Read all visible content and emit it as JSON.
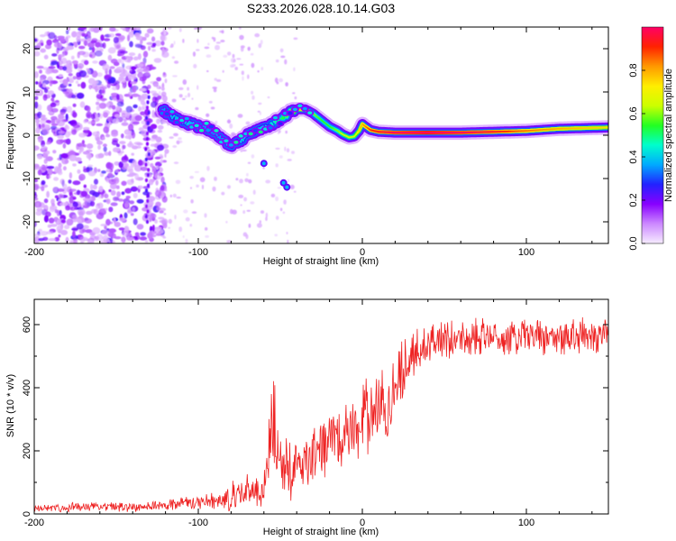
{
  "title": "S233.2026.028.10.14.G03",
  "chart_data": [
    {
      "type": "heatmap",
      "name": "spectrogram",
      "xlabel": "Height of straight line (km)",
      "ylabel": "Frequency (Hz)",
      "xlim": [
        -200,
        150
      ],
      "ylim": [
        -25,
        25
      ],
      "x_ticks": [
        -200,
        -100,
        0,
        100
      ],
      "x_tick_labels": [
        "-200",
        "-100",
        "0",
        "100"
      ],
      "y_ticks": [
        -20,
        -10,
        0,
        10,
        20
      ],
      "y_tick_labels": [
        "-20",
        "-10",
        "0",
        "10",
        "20"
      ],
      "colorbar": {
        "label": "Normalized spectral amplitude",
        "range": [
          0,
          1
        ],
        "ticks": [
          0.0,
          0.2,
          0.4,
          0.6,
          0.8
        ],
        "tick_labels": [
          "0.0",
          "0.2",
          "0.4",
          "0.6",
          "0.8"
        ],
        "colormap": [
          "#f6ecff",
          "#cc88ff",
          "#8800ff",
          "#2222ff",
          "#00aaff",
          "#00ffcc",
          "#22ff22",
          "#ccff00",
          "#ffee00",
          "#ff9900",
          "#ff2200",
          "#ff0066"
        ]
      },
      "ridge": {
        "x": [
          -122,
          -115,
          -108,
          -100,
          -95,
          -90,
          -85,
          -80,
          -75,
          -70,
          -65,
          -60,
          -55,
          -50,
          -45,
          -40,
          -35,
          -30,
          -25,
          -20,
          -15,
          -12,
          -8,
          -5,
          -2,
          0,
          2,
          5,
          10,
          20,
          40,
          60,
          80,
          100,
          120,
          150
        ],
        "y": [
          6,
          4,
          3,
          2,
          1.5,
          0.5,
          -1,
          -2.5,
          -1.5,
          0,
          0.8,
          1.8,
          2.6,
          3.8,
          5,
          6,
          6,
          5,
          3.5,
          2,
          1,
          0.2,
          -0.5,
          -0.3,
          1,
          2.6,
          2,
          1.2,
          0.8,
          0.6,
          0.6,
          0.6,
          0.8,
          1.0,
          1.5,
          1.8
        ],
        "amplitude": [
          0.3,
          0.35,
          0.35,
          0.3,
          0.3,
          0.3,
          0.3,
          0.35,
          0.35,
          0.35,
          0.35,
          0.35,
          0.4,
          0.45,
          0.55,
          0.7,
          0.75,
          0.55,
          0.5,
          0.5,
          0.55,
          0.6,
          0.6,
          0.6,
          0.7,
          0.75,
          0.8,
          0.85,
          0.9,
          0.95,
          1.0,
          0.95,
          0.9,
          0.8,
          0.75,
          0.7
        ]
      },
      "noise_region": {
        "x": [
          -200,
          -120
        ],
        "y": [
          -25,
          25
        ],
        "amplitude": [
          0.05,
          0.25
        ]
      }
    },
    {
      "type": "line",
      "name": "snr",
      "xlabel": "Height of straight line (km)",
      "ylabel": "SNR (10 * v/v)",
      "xlim": [
        -200,
        150
      ],
      "ylim": [
        0,
        680
      ],
      "x_ticks": [
        -200,
        -100,
        0,
        100
      ],
      "x_tick_labels": [
        "-200",
        "-100",
        "0",
        "100"
      ],
      "y_ticks": [
        0,
        200,
        400,
        600
      ],
      "y_tick_labels": [
        "0",
        "200",
        "400",
        "600"
      ],
      "color": "#ee2222",
      "envelope": {
        "x": [
          -200,
          -150,
          -130,
          -120,
          -100,
          -90,
          -80,
          -70,
          -60,
          -55,
          -50,
          -45,
          -40,
          -30,
          -20,
          -10,
          0,
          10,
          15,
          20,
          25,
          30,
          40,
          60,
          80,
          100,
          120,
          150
        ],
        "mean": [
          20,
          22,
          25,
          30,
          35,
          40,
          55,
          70,
          85,
          230,
          160,
          130,
          150,
          180,
          220,
          260,
          290,
          320,
          350,
          400,
          450,
          500,
          540,
          560,
          560,
          560,
          560,
          570
        ],
        "spread": [
          12,
          15,
          15,
          20,
          25,
          30,
          40,
          50,
          60,
          100,
          100,
          90,
          90,
          90,
          90,
          100,
          110,
          120,
          120,
          110,
          100,
          80,
          70,
          60,
          60,
          60,
          60,
          50
        ]
      }
    }
  ]
}
